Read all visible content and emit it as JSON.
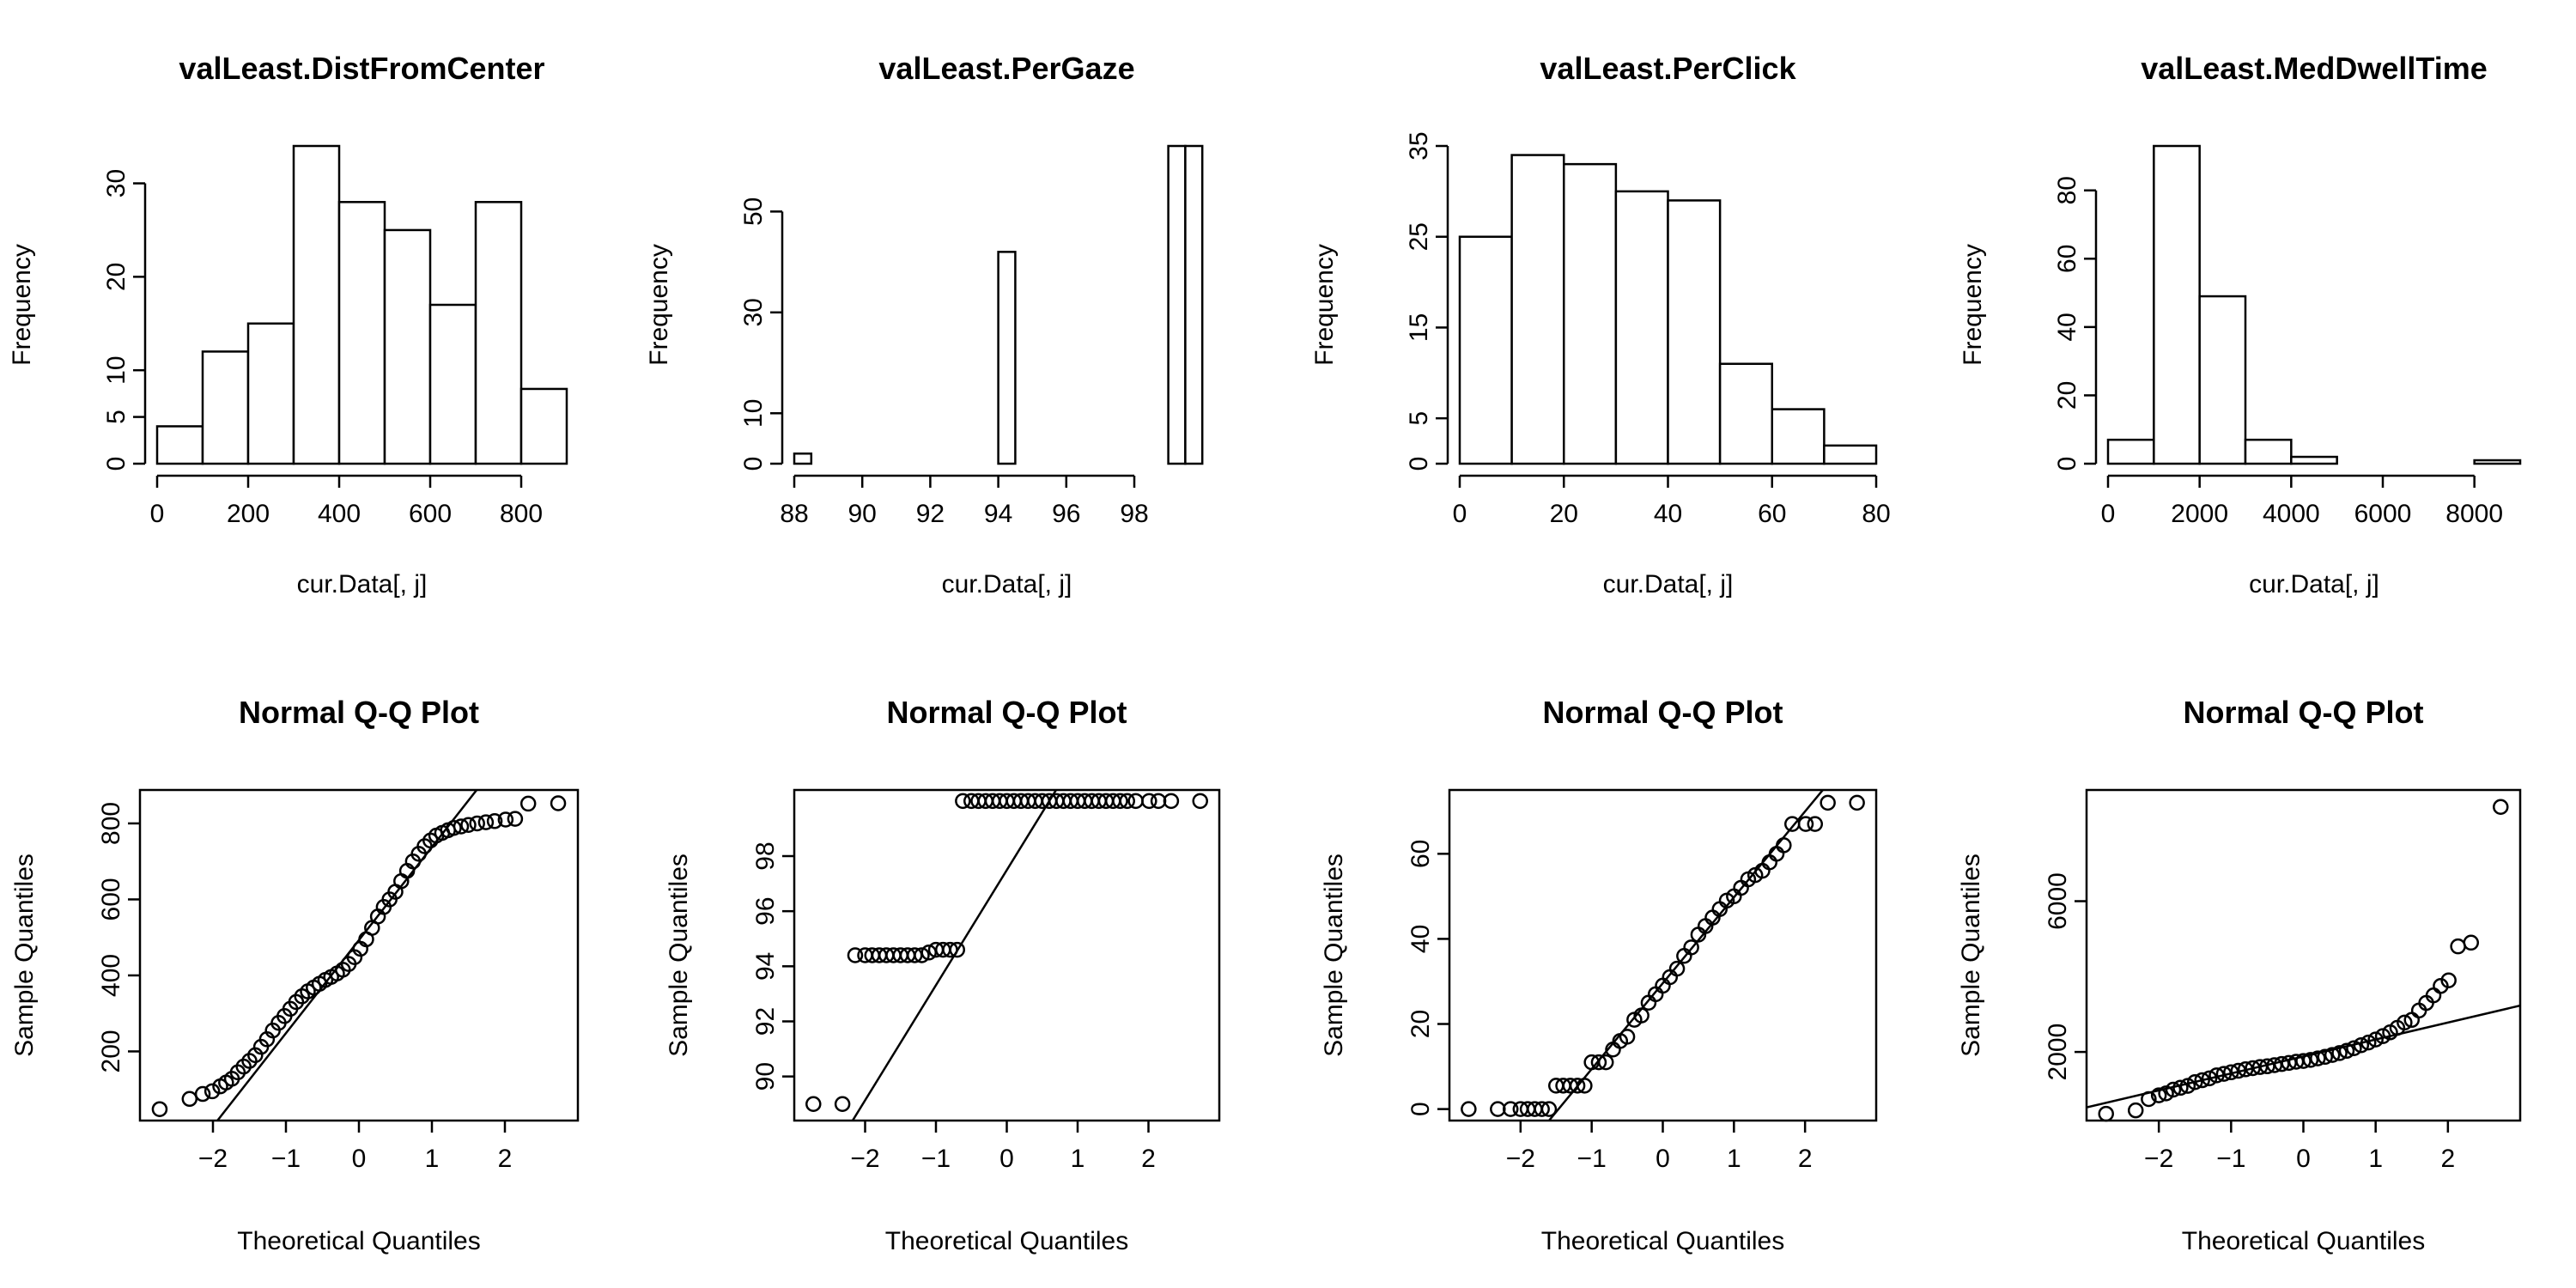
{
  "chart_data": [
    {
      "type": "histogram",
      "title": "valLeast.DistFromCenter",
      "xlabel": "cur.Data[, j]",
      "ylabel": "Frequency",
      "xlim": [
        0,
        900
      ],
      "ylim": [
        0,
        34
      ],
      "xticks": [
        0,
        200,
        400,
        600,
        800
      ],
      "yticks": [
        0,
        5,
        10,
        20,
        30
      ],
      "breaks": [
        0,
        100,
        200,
        300,
        400,
        500,
        600,
        700,
        800,
        900
      ],
      "counts": [
        4,
        12,
        15,
        34,
        28,
        25,
        17,
        28,
        8
      ]
    },
    {
      "type": "histogram",
      "title": "valLeast.PerGaze",
      "xlabel": "cur.Data[, j]",
      "ylabel": "Frequency",
      "xlim": [
        88,
        100.5
      ],
      "ylim": [
        0,
        63
      ],
      "xticks": [
        88,
        90,
        92,
        94,
        96,
        98
      ],
      "yticks": [
        0,
        10,
        30,
        50
      ],
      "breaks": [
        88,
        88.5,
        89,
        89.5,
        90,
        90.5,
        91,
        91.5,
        92,
        92.5,
        93,
        93.5,
        94,
        94.5,
        95,
        95.5,
        96,
        96.5,
        97,
        97.5,
        98,
        98.5,
        99,
        99.5,
        100,
        100.5
      ],
      "counts": [
        2,
        0,
        0,
        0,
        0,
        0,
        0,
        0,
        0,
        0,
        0,
        0,
        42,
        0,
        0,
        0,
        0,
        0,
        0,
        0,
        0,
        0,
        63,
        63,
        0
      ]
    },
    {
      "type": "histogram",
      "title": "valLeast.PerClick",
      "xlabel": "cur.Data[, j]",
      "ylabel": "Frequency",
      "xlim": [
        0,
        80
      ],
      "ylim": [
        0,
        35
      ],
      "xticks": [
        0,
        20,
        40,
        60,
        80
      ],
      "yticks": [
        0,
        5,
        15,
        25,
        35
      ],
      "breaks": [
        0,
        10,
        20,
        30,
        40,
        50,
        60,
        70,
        80
      ],
      "counts": [
        25,
        34,
        33,
        30,
        29,
        11,
        6,
        2
      ]
    },
    {
      "type": "histogram",
      "title": "valLeast.MedDwellTime",
      "xlabel": "cur.Data[, j]",
      "ylabel": "Frequency",
      "xlim": [
        0,
        9000
      ],
      "ylim": [
        0,
        93
      ],
      "xticks": [
        0,
        2000,
        4000,
        6000,
        8000
      ],
      "yticks": [
        0,
        20,
        40,
        60,
        80
      ],
      "breaks": [
        0,
        1000,
        2000,
        3000,
        4000,
        5000,
        6000,
        7000,
        8000,
        9000
      ],
      "counts": [
        7,
        93,
        49,
        7,
        2,
        0,
        0,
        0,
        1
      ]
    },
    {
      "type": "scatter",
      "title": "Normal Q-Q Plot",
      "xlabel": "Theoretical Quantiles",
      "ylabel": "Sample Quantiles",
      "xlim": [
        -3,
        3
      ],
      "ylim": [
        18,
        888
      ],
      "xticks": [
        -2,
        -1,
        0,
        1,
        2
      ],
      "yticks": [
        200,
        400,
        600,
        800
      ],
      "points": [
        [
          -2.73,
          48
        ],
        [
          -2.32,
          75
        ],
        [
          -2.14,
          88
        ],
        [
          -2.01,
          95
        ],
        [
          -1.9,
          108
        ],
        [
          -1.82,
          118
        ],
        [
          -1.74,
          128
        ],
        [
          -1.66,
          145
        ],
        [
          -1.58,
          160
        ],
        [
          -1.5,
          175
        ],
        [
          -1.42,
          190
        ],
        [
          -1.34,
          212
        ],
        [
          -1.26,
          232
        ],
        [
          -1.18,
          255
        ],
        [
          -1.1,
          275
        ],
        [
          -1.02,
          293
        ],
        [
          -0.94,
          312
        ],
        [
          -0.86,
          330
        ],
        [
          -0.78,
          345
        ],
        [
          -0.7,
          358
        ],
        [
          -0.62,
          368
        ],
        [
          -0.54,
          378
        ],
        [
          -0.46,
          388
        ],
        [
          -0.38,
          396
        ],
        [
          -0.3,
          405
        ],
        [
          -0.22,
          415
        ],
        [
          -0.14,
          430
        ],
        [
          -0.06,
          448
        ],
        [
          0.02,
          470
        ],
        [
          0.1,
          495
        ],
        [
          0.18,
          525
        ],
        [
          0.26,
          555
        ],
        [
          0.34,
          580
        ],
        [
          0.42,
          600
        ],
        [
          0.5,
          620
        ],
        [
          0.58,
          648
        ],
        [
          0.66,
          675
        ],
        [
          0.74,
          700
        ],
        [
          0.82,
          720
        ],
        [
          0.9,
          740
        ],
        [
          0.98,
          755
        ],
        [
          1.06,
          768
        ],
        [
          1.14,
          775
        ],
        [
          1.22,
          782
        ],
        [
          1.3,
          788
        ],
        [
          1.4,
          792
        ],
        [
          1.5,
          796
        ],
        [
          1.62,
          800
        ],
        [
          1.74,
          803
        ],
        [
          1.86,
          806
        ],
        [
          2.01,
          810
        ],
        [
          2.14,
          812
        ],
        [
          2.32,
          852
        ],
        [
          2.73,
          853
        ]
      ],
      "line": [
        [
          -2.2,
          -46
        ],
        [
          1.65,
          897
        ]
      ]
    },
    {
      "type": "scatter",
      "title": "Normal Q-Q Plot",
      "xlabel": "Theoretical Quantiles",
      "ylabel": "Sample Quantiles",
      "xlim": [
        -3,
        3
      ],
      "ylim": [
        88.4,
        100.4
      ],
      "xticks": [
        -2,
        -1,
        0,
        1,
        2
      ],
      "yticks": [
        90,
        92,
        94,
        96,
        98
      ],
      "points": [
        [
          -2.73,
          89
        ],
        [
          -2.32,
          89
        ],
        [
          -2.14,
          94.4
        ],
        [
          -2.0,
          94.4
        ],
        [
          -1.9,
          94.4
        ],
        [
          -1.8,
          94.4
        ],
        [
          -1.7,
          94.4
        ],
        [
          -1.6,
          94.4
        ],
        [
          -1.5,
          94.4
        ],
        [
          -1.4,
          94.4
        ],
        [
          -1.3,
          94.4
        ],
        [
          -1.2,
          94.4
        ],
        [
          -1.1,
          94.5
        ],
        [
          -1.0,
          94.6
        ],
        [
          -0.9,
          94.6
        ],
        [
          -0.8,
          94.6
        ],
        [
          -0.7,
          94.6
        ],
        [
          -0.62,
          100
        ],
        [
          -0.5,
          100
        ],
        [
          -0.4,
          100
        ],
        [
          -0.3,
          100
        ],
        [
          -0.2,
          100
        ],
        [
          -0.1,
          100
        ],
        [
          0.0,
          100
        ],
        [
          0.1,
          100
        ],
        [
          0.2,
          100
        ],
        [
          0.3,
          100
        ],
        [
          0.4,
          100
        ],
        [
          0.5,
          100
        ],
        [
          0.6,
          100
        ],
        [
          0.7,
          100
        ],
        [
          0.8,
          100
        ],
        [
          0.9,
          100
        ],
        [
          1.0,
          100
        ],
        [
          1.1,
          100
        ],
        [
          1.2,
          100
        ],
        [
          1.3,
          100
        ],
        [
          1.4,
          100
        ],
        [
          1.5,
          100
        ],
        [
          1.6,
          100
        ],
        [
          1.7,
          100
        ],
        [
          1.82,
          100
        ],
        [
          2.01,
          100
        ],
        [
          2.14,
          100
        ],
        [
          2.32,
          100
        ],
        [
          2.73,
          100
        ]
      ],
      "line": [
        [
          -2.2,
          88.3
        ],
        [
          0.72,
          100.5
        ]
      ]
    },
    {
      "type": "scatter",
      "title": "Normal Q-Q Plot",
      "xlabel": "Theoretical Quantiles",
      "ylabel": "Sample Quantiles",
      "xlim": [
        -3,
        3
      ],
      "ylim": [
        -2.7,
        75
      ],
      "xticks": [
        -2,
        -1,
        0,
        1,
        2
      ],
      "yticks": [
        0,
        20,
        40,
        60
      ],
      "points": [
        [
          -2.73,
          0
        ],
        [
          -2.32,
          0
        ],
        [
          -2.14,
          0
        ],
        [
          -2.0,
          0
        ],
        [
          -1.9,
          0
        ],
        [
          -1.8,
          0
        ],
        [
          -1.7,
          0
        ],
        [
          -1.6,
          0
        ],
        [
          -1.5,
          5.5
        ],
        [
          -1.4,
          5.5
        ],
        [
          -1.3,
          5.5
        ],
        [
          -1.2,
          5.5
        ],
        [
          -1.1,
          5.5
        ],
        [
          -1.0,
          11
        ],
        [
          -0.9,
          11
        ],
        [
          -0.8,
          11
        ],
        [
          -0.7,
          14
        ],
        [
          -0.6,
          16
        ],
        [
          -0.5,
          17
        ],
        [
          -0.4,
          21
        ],
        [
          -0.3,
          22
        ],
        [
          -0.2,
          25
        ],
        [
          -0.1,
          27
        ],
        [
          0.0,
          29
        ],
        [
          0.1,
          31
        ],
        [
          0.2,
          33
        ],
        [
          0.3,
          36
        ],
        [
          0.4,
          38
        ],
        [
          0.5,
          41
        ],
        [
          0.6,
          43
        ],
        [
          0.7,
          45
        ],
        [
          0.8,
          47
        ],
        [
          0.9,
          49
        ],
        [
          1.0,
          50
        ],
        [
          1.1,
          52
        ],
        [
          1.2,
          54
        ],
        [
          1.3,
          55
        ],
        [
          1.4,
          56
        ],
        [
          1.5,
          58
        ],
        [
          1.6,
          60
        ],
        [
          1.7,
          62
        ],
        [
          1.82,
          67
        ],
        [
          2.01,
          67
        ],
        [
          2.14,
          67
        ],
        [
          2.32,
          72
        ],
        [
          2.73,
          72
        ]
      ],
      "line": [
        [
          -1.6,
          -2.7
        ],
        [
          2.25,
          75
        ]
      ]
    },
    {
      "type": "scatter",
      "title": "Normal Q-Q Plot",
      "xlabel": "Theoretical Quantiles",
      "ylabel": "Sample Quantiles",
      "xlim": [
        -3,
        3
      ],
      "ylim": [
        180,
        8950
      ],
      "xticks": [
        -2,
        -1,
        0,
        1,
        2
      ],
      "yticks": [
        2000,
        6000
      ],
      "points": [
        [
          -2.73,
          360
        ],
        [
          -2.32,
          450
        ],
        [
          -2.14,
          750
        ],
        [
          -2.0,
          850
        ],
        [
          -1.9,
          900
        ],
        [
          -1.8,
          1000
        ],
        [
          -1.7,
          1050
        ],
        [
          -1.6,
          1100
        ],
        [
          -1.5,
          1200
        ],
        [
          -1.4,
          1250
        ],
        [
          -1.3,
          1300
        ],
        [
          -1.2,
          1380
        ],
        [
          -1.1,
          1420
        ],
        [
          -1.0,
          1460
        ],
        [
          -0.9,
          1500
        ],
        [
          -0.8,
          1540
        ],
        [
          -0.7,
          1570
        ],
        [
          -0.6,
          1600
        ],
        [
          -0.5,
          1620
        ],
        [
          -0.4,
          1650
        ],
        [
          -0.3,
          1680
        ],
        [
          -0.2,
          1710
        ],
        [
          -0.1,
          1740
        ],
        [
          0.0,
          1760
        ],
        [
          0.1,
          1790
        ],
        [
          0.2,
          1830
        ],
        [
          0.3,
          1870
        ],
        [
          0.4,
          1920
        ],
        [
          0.5,
          1970
        ],
        [
          0.6,
          2030
        ],
        [
          0.7,
          2100
        ],
        [
          0.8,
          2180
        ],
        [
          0.9,
          2250
        ],
        [
          1.0,
          2330
        ],
        [
          1.1,
          2420
        ],
        [
          1.2,
          2520
        ],
        [
          1.3,
          2640
        ],
        [
          1.4,
          2780
        ],
        [
          1.5,
          2850
        ],
        [
          1.6,
          3100
        ],
        [
          1.7,
          3300
        ],
        [
          1.8,
          3500
        ],
        [
          1.9,
          3750
        ],
        [
          2.01,
          3900
        ],
        [
          2.14,
          4800
        ],
        [
          2.32,
          4900
        ],
        [
          2.73,
          8500
        ]
      ],
      "line": [
        [
          -3,
          530
        ],
        [
          3,
          3230
        ]
      ]
    }
  ]
}
